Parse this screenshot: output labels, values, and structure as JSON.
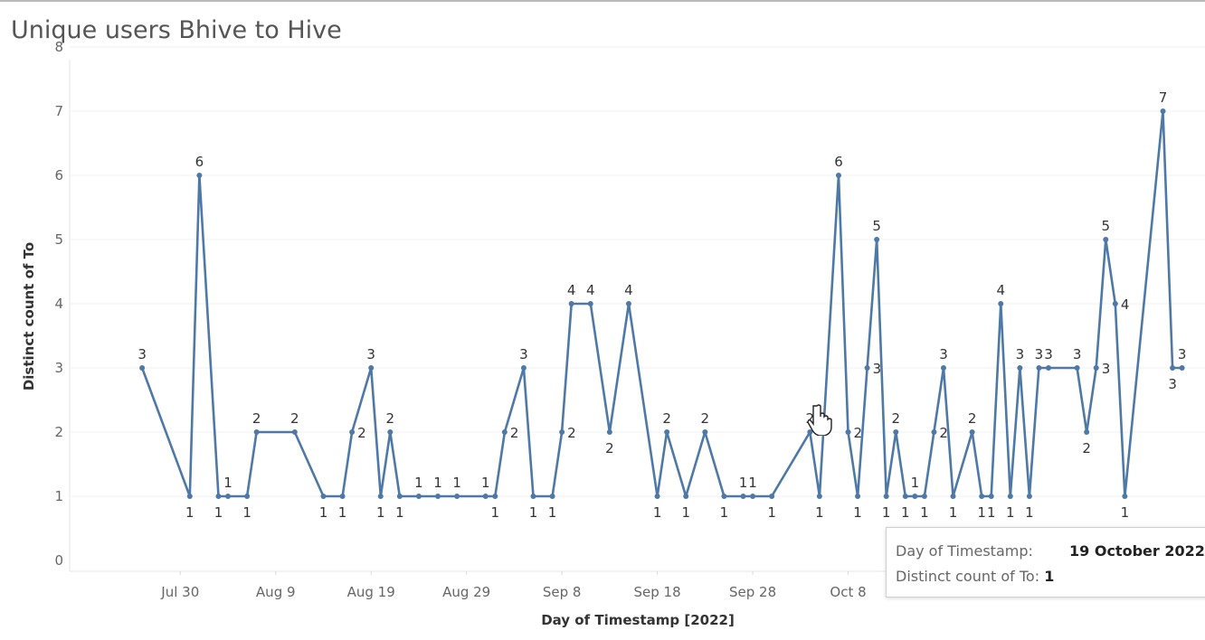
{
  "title": "Unique users Bhive to Hive",
  "chart_data": {
    "type": "line",
    "title": "Unique users Bhive to Hive",
    "xlabel": "Day of Timestamp [2022]",
    "ylabel": "Distinct count of To",
    "ylim": [
      0,
      8
    ],
    "yticks": [
      0,
      1,
      2,
      3,
      4,
      5,
      6,
      7,
      8
    ],
    "xlim": [
      "2022-07-24",
      "2022-11-09"
    ],
    "xticks": [
      {
        "date": "2022-07-30",
        "label": "Jul 30"
      },
      {
        "date": "2022-08-09",
        "label": "Aug 9"
      },
      {
        "date": "2022-08-19",
        "label": "Aug 19"
      },
      {
        "date": "2022-08-29",
        "label": "Aug 29"
      },
      {
        "date": "2022-09-08",
        "label": "Sep 8"
      },
      {
        "date": "2022-09-18",
        "label": "Sep 18"
      },
      {
        "date": "2022-09-28",
        "label": "Sep 28"
      },
      {
        "date": "2022-10-08",
        "label": "Oct 8"
      }
    ],
    "grid": true,
    "color": "#4e79a7",
    "series": [
      {
        "values": [
          {
            "x": "2022-07-26",
            "y": 3
          },
          {
            "x": "2022-07-31",
            "y": 1
          },
          {
            "x": "2022-08-01",
            "y": 6
          },
          {
            "x": "2022-08-03",
            "y": 1
          },
          {
            "x": "2022-08-04",
            "y": 1
          },
          {
            "x": "2022-08-06",
            "y": 1
          },
          {
            "x": "2022-08-07",
            "y": 2
          },
          {
            "x": "2022-08-11",
            "y": 2
          },
          {
            "x": "2022-08-14",
            "y": 1
          },
          {
            "x": "2022-08-16",
            "y": 1
          },
          {
            "x": "2022-08-17",
            "y": 2
          },
          {
            "x": "2022-08-19",
            "y": 3
          },
          {
            "x": "2022-08-20",
            "y": 1
          },
          {
            "x": "2022-08-21",
            "y": 2
          },
          {
            "x": "2022-08-22",
            "y": 1
          },
          {
            "x": "2022-08-24",
            "y": 1
          },
          {
            "x": "2022-08-26",
            "y": 1
          },
          {
            "x": "2022-08-28",
            "y": 1
          },
          {
            "x": "2022-08-31",
            "y": 1
          },
          {
            "x": "2022-09-01",
            "y": 1
          },
          {
            "x": "2022-09-02",
            "y": 2
          },
          {
            "x": "2022-09-04",
            "y": 3
          },
          {
            "x": "2022-09-05",
            "y": 1
          },
          {
            "x": "2022-09-07",
            "y": 1
          },
          {
            "x": "2022-09-08",
            "y": 2
          },
          {
            "x": "2022-09-09",
            "y": 4
          },
          {
            "x": "2022-09-11",
            "y": 4
          },
          {
            "x": "2022-09-13",
            "y": 2
          },
          {
            "x": "2022-09-15",
            "y": 4
          },
          {
            "x": "2022-09-18",
            "y": 1
          },
          {
            "x": "2022-09-19",
            "y": 2
          },
          {
            "x": "2022-09-21",
            "y": 1
          },
          {
            "x": "2022-09-23",
            "y": 2
          },
          {
            "x": "2022-09-25",
            "y": 1
          },
          {
            "x": "2022-09-27",
            "y": 1
          },
          {
            "x": "2022-09-28",
            "y": 1
          },
          {
            "x": "2022-09-30",
            "y": 1
          },
          {
            "x": "2022-10-04",
            "y": 2
          },
          {
            "x": "2022-10-05",
            "y": 1
          },
          {
            "x": "2022-10-07",
            "y": 6
          },
          {
            "x": "2022-10-08",
            "y": 2
          },
          {
            "x": "2022-10-09",
            "y": 1
          },
          {
            "x": "2022-10-10",
            "y": 3
          },
          {
            "x": "2022-10-11",
            "y": 5
          },
          {
            "x": "2022-10-12",
            "y": 1
          },
          {
            "x": "2022-10-13",
            "y": 2
          },
          {
            "x": "2022-10-14",
            "y": 1
          },
          {
            "x": "2022-10-15",
            "y": 1
          },
          {
            "x": "2022-10-16",
            "y": 1
          },
          {
            "x": "2022-10-17",
            "y": 2
          },
          {
            "x": "2022-10-18",
            "y": 3
          },
          {
            "x": "2022-10-19",
            "y": 1
          },
          {
            "x": "2022-10-21",
            "y": 2
          },
          {
            "x": "2022-10-22",
            "y": 1
          },
          {
            "x": "2022-10-23",
            "y": 1
          },
          {
            "x": "2022-10-24",
            "y": 4
          },
          {
            "x": "2022-10-25",
            "y": 1
          },
          {
            "x": "2022-10-26",
            "y": 3
          },
          {
            "x": "2022-10-27",
            "y": 1
          },
          {
            "x": "2022-10-28",
            "y": 3
          },
          {
            "x": "2022-10-29",
            "y": 3
          },
          {
            "x": "2022-11-01",
            "y": 3
          },
          {
            "x": "2022-11-02",
            "y": 2
          },
          {
            "x": "2022-11-03",
            "y": 3
          },
          {
            "x": "2022-11-04",
            "y": 5
          },
          {
            "x": "2022-11-05",
            "y": 4
          },
          {
            "x": "2022-11-06",
            "y": 1
          },
          {
            "x": "2022-11-10",
            "y": 7
          },
          {
            "x": "2022-11-11",
            "y": 3
          },
          {
            "x": "2022-11-12",
            "y": 3
          }
        ]
      }
    ]
  },
  "tooltip": {
    "row1_label": "Day of Timestamp:",
    "row1_value": "19 October 2022",
    "row2_label": "Distinct count of To:",
    "row2_value": "1"
  }
}
